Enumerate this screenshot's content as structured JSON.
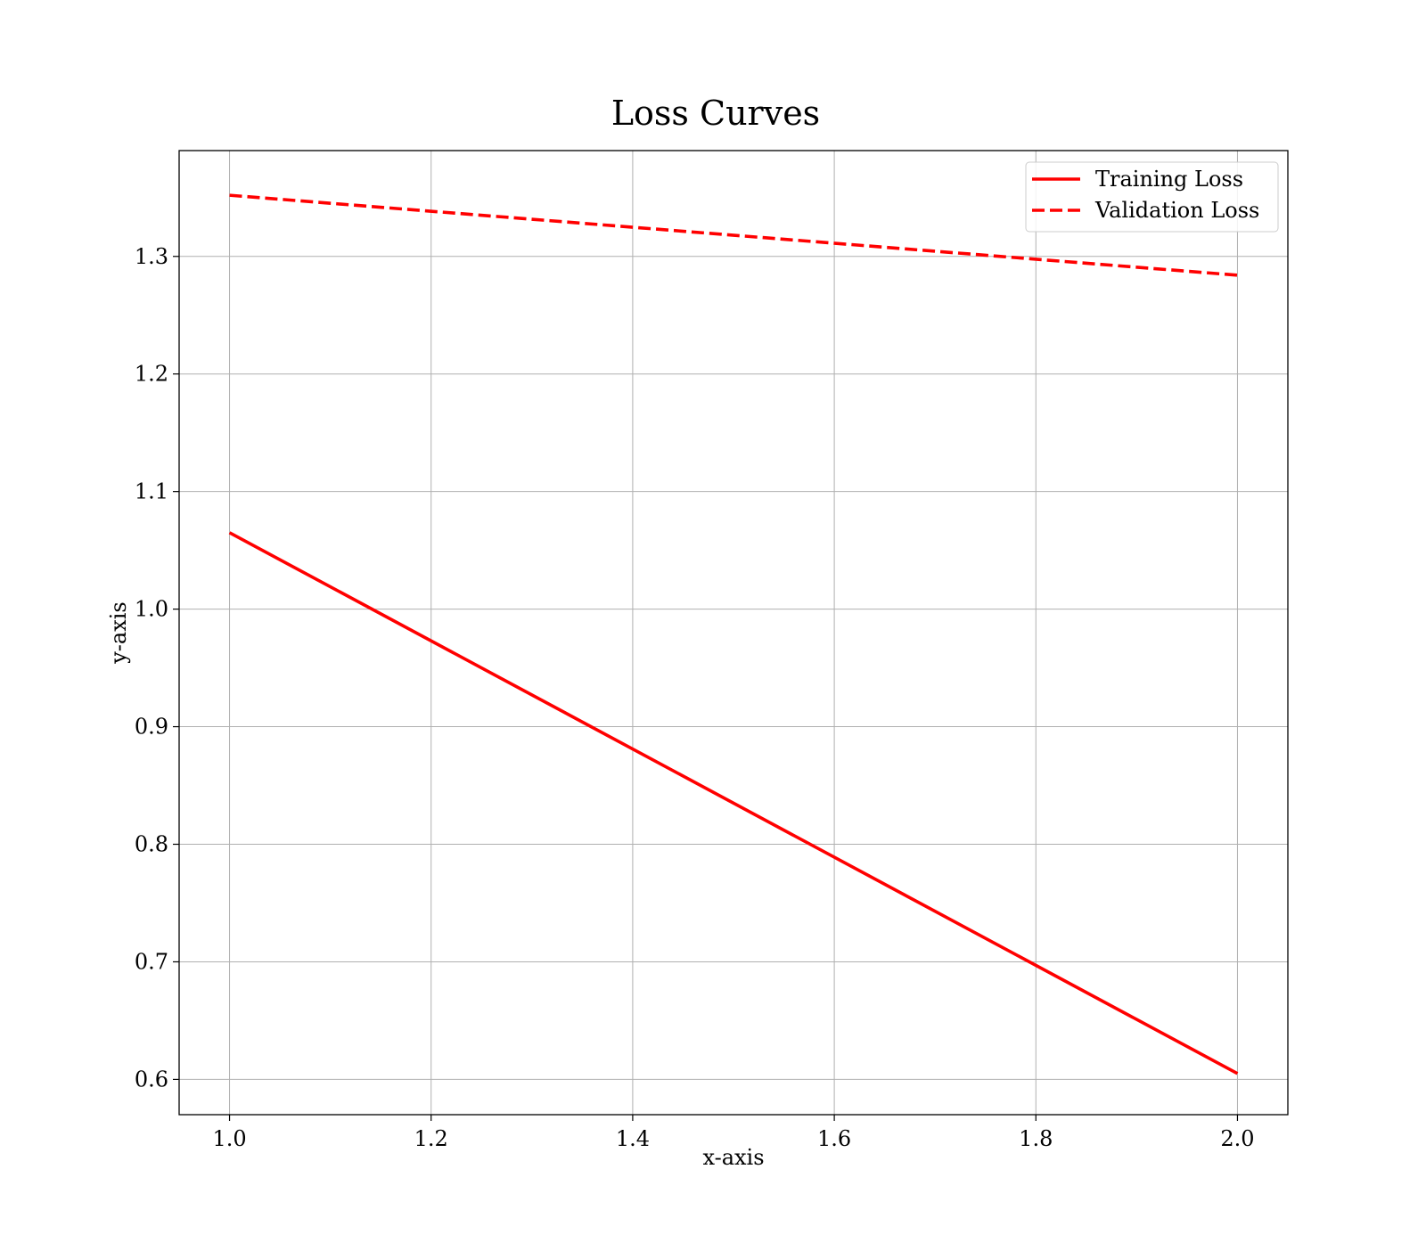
{
  "chart_data": {
    "type": "line",
    "title": "Loss Curves",
    "xlabel": "x-axis",
    "ylabel": "y-axis",
    "xlim": [
      0.95,
      2.05
    ],
    "ylim": [
      0.57,
      1.39
    ],
    "xticks": [
      1.0,
      1.2,
      1.4,
      1.6,
      1.8,
      2.0
    ],
    "xtick_labels": [
      "1.0",
      "1.2",
      "1.4",
      "1.6",
      "1.8",
      "2.0"
    ],
    "yticks": [
      0.6,
      0.7,
      0.8,
      0.9,
      1.0,
      1.1,
      1.2,
      1.3
    ],
    "ytick_labels": [
      "0.6",
      "0.7",
      "0.8",
      "0.9",
      "1.0",
      "1.1",
      "1.2",
      "1.3"
    ],
    "grid": true,
    "legend_position": "top-right",
    "series": [
      {
        "name": "Training Loss",
        "x": [
          1.0,
          2.0
        ],
        "y": [
          1.065,
          0.605
        ],
        "color": "#ff0000",
        "style": "solid"
      },
      {
        "name": "Validation Loss",
        "x": [
          1.0,
          2.0
        ],
        "y": [
          1.352,
          1.284
        ],
        "color": "#ff0000",
        "style": "dashed"
      }
    ]
  }
}
